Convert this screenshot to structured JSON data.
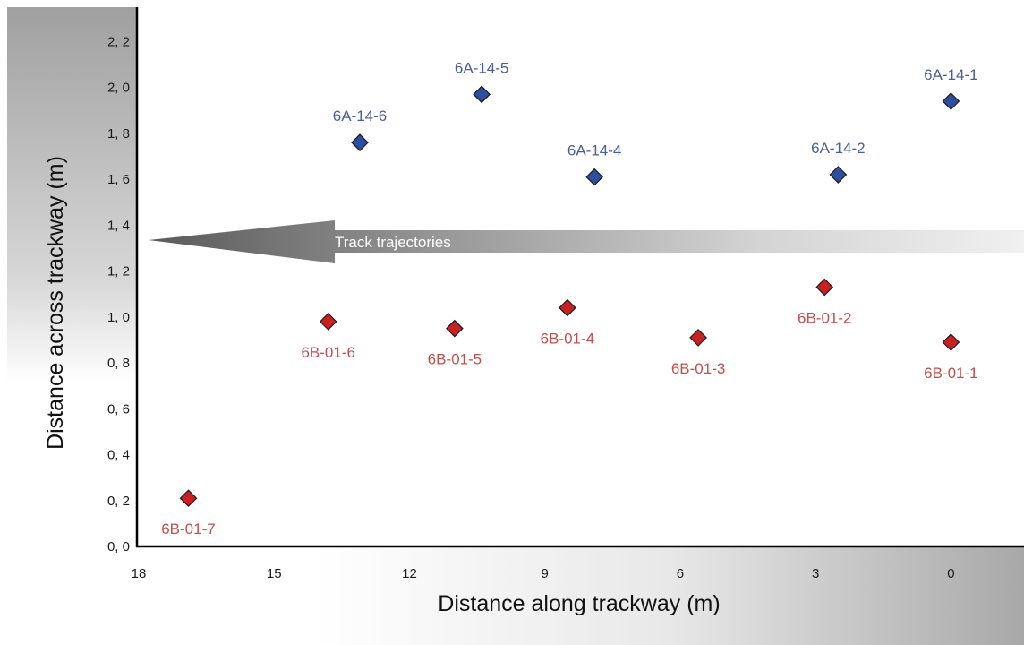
{
  "chart_data": {
    "type": "scatter",
    "xlabel": "Distance along trackway (m)",
    "ylabel": "Distance across trackway (m)",
    "x_reversed": true,
    "xlim": [
      18,
      -1.5
    ],
    "ylim": [
      0,
      2.35
    ],
    "x_ticks": [
      {
        "value": 18,
        "label": "18"
      },
      {
        "value": 15,
        "label": "15"
      },
      {
        "value": 12,
        "label": "12"
      },
      {
        "value": 9,
        "label": "9"
      },
      {
        "value": 6,
        "label": "6"
      },
      {
        "value": 3,
        "label": "3"
      },
      {
        "value": 0,
        "label": "0"
      }
    ],
    "y_ticks": [
      {
        "value": 0.0,
        "label": "0, 0"
      },
      {
        "value": 0.2,
        "label": "0, 2"
      },
      {
        "value": 0.4,
        "label": "0, 4"
      },
      {
        "value": 0.6,
        "label": "0, 6"
      },
      {
        "value": 0.8,
        "label": "0, 8"
      },
      {
        "value": 1.0,
        "label": "1, 0"
      },
      {
        "value": 1.2,
        "label": "1, 2"
      },
      {
        "value": 1.4,
        "label": "1, 4"
      },
      {
        "value": 1.6,
        "label": "1, 6"
      },
      {
        "value": 1.8,
        "label": "1, 8"
      },
      {
        "value": 2.0,
        "label": "2, 0"
      },
      {
        "value": 2.2,
        "label": "2, 2"
      }
    ],
    "series": [
      {
        "color": "#2e4fa0",
        "label_color": "#4a5f9a",
        "label_position": "above",
        "points": [
          {
            "label": "6A-14-1",
            "x": 0.0,
            "y": 1.94
          },
          {
            "label": "6A-14-2",
            "x": 2.5,
            "y": 1.62
          },
          {
            "label": "6A-14-4",
            "x": 7.9,
            "y": 1.61
          },
          {
            "label": "6A-14-5",
            "x": 10.4,
            "y": 1.97
          },
          {
            "label": "6A-14-6",
            "x": 13.1,
            "y": 1.76
          }
        ]
      },
      {
        "color": "#cc1f24",
        "label_color": "#c0504d",
        "label_position": "below",
        "points": [
          {
            "label": "6B-01-1",
            "x": 0.0,
            "y": 0.89
          },
          {
            "label": "6B-01-2",
            "x": 2.8,
            "y": 1.13
          },
          {
            "label": "6B-01-3",
            "x": 5.6,
            "y": 0.91
          },
          {
            "label": "6B-01-4",
            "x": 8.5,
            "y": 1.04
          },
          {
            "label": "6B-01-5",
            "x": 11.0,
            "y": 0.95
          },
          {
            "label": "6B-01-6",
            "x": 13.8,
            "y": 0.98
          },
          {
            "label": "6B-01-7",
            "x": 16.9,
            "y": 0.21
          }
        ]
      }
    ],
    "annotation": {
      "text": "Track trajectories",
      "type": "arrow",
      "direction": "left",
      "y": 1.33
    },
    "grid": false,
    "legend": "none"
  }
}
